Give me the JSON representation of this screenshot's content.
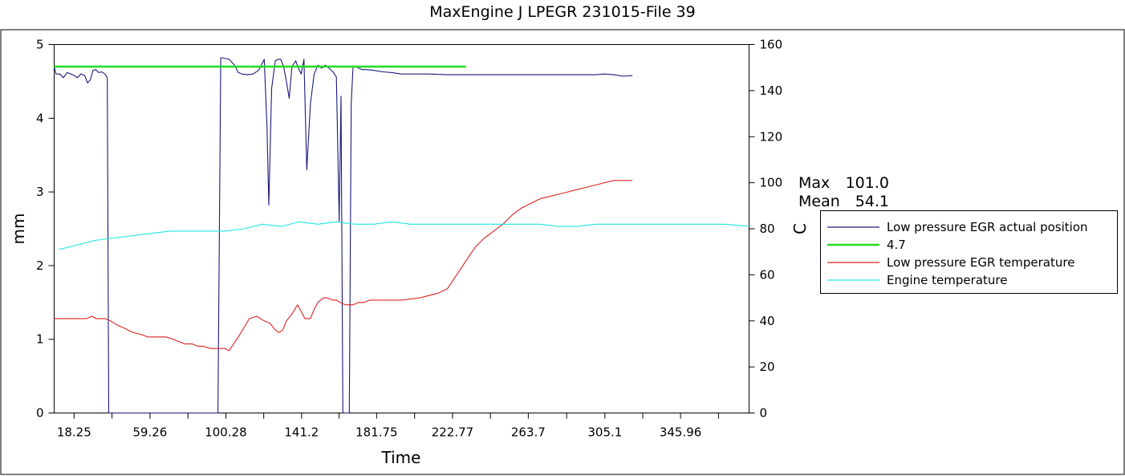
{
  "chart_data": {
    "type": "line",
    "title": "MaxEngine J LPEGR 231015-File 39",
    "xlabel": "Time",
    "ylabel_left": "mm",
    "ylabel_right": "C",
    "xlim": [
      7.5,
      383
    ],
    "ylim_left": [
      0,
      5
    ],
    "ylim_right": [
      0,
      160
    ],
    "x_ticks": [
      18.25,
      38.76,
      59.26,
      79.77,
      100.28,
      120.74,
      141.2,
      161.48,
      181.75,
      202.26,
      222.77,
      243.24,
      263.7,
      284.4,
      305.1,
      325.53,
      345.96,
      366.48
    ],
    "x_tick_labels": [
      "18.25",
      "",
      "59.26",
      "",
      "100.28",
      "",
      "141.2",
      "",
      "181.75",
      "",
      "222.77",
      "",
      "263.7",
      "",
      "305.1",
      "",
      "345.96",
      ""
    ],
    "y_ticks_left": [
      0,
      1,
      2,
      3,
      4,
      5
    ],
    "y_ticks_right": [
      0,
      20,
      40,
      60,
      80,
      100,
      120,
      140,
      160
    ],
    "grid": false,
    "stats": {
      "max_label": "Max",
      "max_value": "101.0",
      "mean_label": "Mean",
      "mean_value": "54.1"
    },
    "legend": {
      "placement": "right"
    },
    "series": [
      {
        "name": "Low pressure EGR actual position",
        "axis": "left",
        "color": "#1a1a7a",
        "x": [
          7.5,
          8.5,
          10.5,
          12.5,
          14.5,
          16.5,
          18.5,
          20,
          22,
          24,
          25.5,
          27,
          28.5,
          30,
          31.5,
          33,
          35,
          36.2,
          37,
          38.5,
          44,
          60,
          80,
          96,
          97.5,
          98.5,
          100,
          102,
          105,
          107,
          109,
          112,
          115,
          118,
          121,
          122.5,
          123.5,
          125,
          127,
          128.5,
          130,
          131.5,
          133,
          134.5,
          136,
          138,
          139.5,
          141,
          142.5,
          144,
          146,
          148,
          150,
          152,
          154,
          156,
          158.5,
          160,
          161.5,
          162.5,
          163.5,
          165,
          167,
          168,
          169,
          170.5,
          172,
          174,
          176,
          180,
          185,
          190,
          195,
          200,
          210,
          220,
          240,
          260,
          280,
          300,
          305,
          310,
          315,
          320
        ],
        "y": [
          4.7,
          4.6,
          4.6,
          4.55,
          4.62,
          4.6,
          4.58,
          4.55,
          4.6,
          4.58,
          4.48,
          4.52,
          4.65,
          4.66,
          4.62,
          4.63,
          4.6,
          4.55,
          0,
          0,
          0,
          0,
          0,
          0,
          4.82,
          4.82,
          4.81,
          4.8,
          4.72,
          4.62,
          4.6,
          4.59,
          4.6,
          4.65,
          4.8,
          3.9,
          2.82,
          4.4,
          4.78,
          4.8,
          4.8,
          4.7,
          4.5,
          4.27,
          4.7,
          4.78,
          4.68,
          4.6,
          4.8,
          3.3,
          4.2,
          4.6,
          4.72,
          4.68,
          4.72,
          4.68,
          4.62,
          4.56,
          2.6,
          4.3,
          0,
          0,
          0,
          4.2,
          4.7,
          4.7,
          4.68,
          4.66,
          4.66,
          4.65,
          4.63,
          4.62,
          4.6,
          4.6,
          4.6,
          4.59,
          4.59,
          4.59,
          4.59,
          4.59,
          4.6,
          4.59,
          4.57,
          4.58
        ]
      },
      {
        "name": "4.7",
        "axis": "left",
        "color": "#22dd22",
        "x": [
          7.5,
          230
        ],
        "y": [
          4.7,
          4.7
        ]
      },
      {
        "name": "Low pressure EGR temperature",
        "axis": "right",
        "color": "#dd2222",
        "x": [
          7.5,
          15,
          25,
          28,
          30,
          35,
          38,
          42,
          45,
          50,
          55,
          58,
          62,
          68,
          72,
          75,
          78,
          82,
          85,
          88,
          92,
          95,
          100,
          102,
          107,
          110,
          113,
          117,
          121,
          124,
          127,
          129,
          131,
          133,
          136,
          139,
          141,
          143,
          146,
          148,
          150,
          153,
          155,
          158,
          160,
          162,
          165,
          169,
          172,
          175,
          178,
          182,
          188,
          195,
          205,
          210,
          215,
          220,
          225,
          230,
          235,
          240,
          245,
          250,
          255,
          260,
          265,
          270,
          275,
          280,
          285,
          290,
          295,
          300,
          305,
          310,
          315,
          320
        ],
        "y": [
          41,
          41,
          41,
          42,
          41,
          41,
          40,
          38,
          37,
          35,
          34,
          33,
          33,
          33,
          32,
          31,
          30,
          30,
          29,
          29,
          28,
          28,
          28,
          27,
          33,
          37,
          41,
          42,
          40,
          39,
          36,
          35,
          36,
          40,
          43,
          47,
          44,
          41,
          41,
          45,
          48,
          50,
          50,
          49,
          49,
          48,
          47,
          47,
          48,
          48,
          49,
          49,
          49,
          49,
          50,
          51,
          52,
          54,
          60,
          66,
          72,
          76,
          79,
          82,
          86,
          89,
          91,
          93,
          94,
          95,
          96,
          97,
          98,
          99,
          100,
          101,
          101,
          101
        ]
      },
      {
        "name": "Engine temperature",
        "axis": "right",
        "color": "#22e6e6",
        "x": [
          10,
          20,
          30,
          40,
          50,
          60,
          70,
          80,
          90,
          100,
          110,
          120,
          130,
          140,
          150,
          160,
          170,
          180,
          190,
          200,
          210,
          220,
          230,
          240,
          250,
          260,
          270,
          280,
          290,
          300,
          310,
          320,
          330,
          340,
          350,
          360,
          370,
          383
        ],
        "y": [
          71,
          73,
          75,
          76,
          77,
          78,
          79,
          79,
          79,
          79,
          80,
          82,
          81,
          83,
          82,
          83,
          82,
          82,
          83,
          82,
          82,
          82,
          82,
          82,
          82,
          82,
          82,
          81,
          81,
          82,
          82,
          82,
          82,
          82,
          82,
          82,
          82,
          81
        ]
      }
    ]
  }
}
